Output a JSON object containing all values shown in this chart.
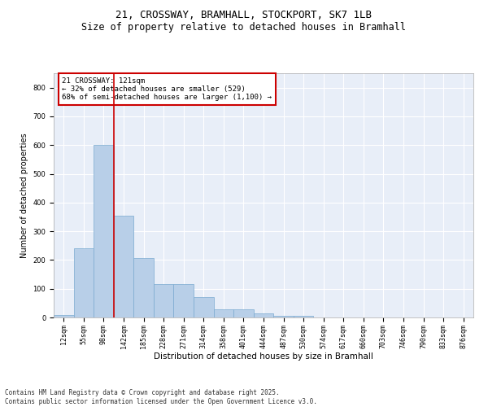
{
  "title": "21, CROSSWAY, BRAMHALL, STOCKPORT, SK7 1LB",
  "subtitle": "Size of property relative to detached houses in Bramhall",
  "xlabel": "Distribution of detached houses by size in Bramhall",
  "ylabel": "Number of detached properties",
  "bar_color": "#b8cfe8",
  "bar_edge_color": "#7aaad0",
  "background_color": "#e8eef8",
  "grid_color": "#ffffff",
  "categories": [
    "12sqm",
    "55sqm",
    "98sqm",
    "142sqm",
    "185sqm",
    "228sqm",
    "271sqm",
    "314sqm",
    "358sqm",
    "401sqm",
    "444sqm",
    "487sqm",
    "530sqm",
    "574sqm",
    "617sqm",
    "660sqm",
    "703sqm",
    "746sqm",
    "790sqm",
    "833sqm",
    "876sqm"
  ],
  "values": [
    8,
    240,
    600,
    355,
    207,
    117,
    117,
    70,
    28,
    28,
    14,
    7,
    7,
    0,
    0,
    0,
    0,
    0,
    0,
    0,
    0
  ],
  "ylim": [
    0,
    850
  ],
  "yticks": [
    0,
    100,
    200,
    300,
    400,
    500,
    600,
    700,
    800
  ],
  "vline_x": 2.5,
  "vline_color": "#cc0000",
  "annotation_text": "21 CROSSWAY: 121sqm\n← 32% of detached houses are smaller (529)\n68% of semi-detached houses are larger (1,100) →",
  "annotation_box_color": "#ffffff",
  "annotation_box_edge_color": "#cc0000",
  "footer_text": "Contains HM Land Registry data © Crown copyright and database right 2025.\nContains public sector information licensed under the Open Government Licence v3.0.",
  "title_fontsize": 9,
  "subtitle_fontsize": 8.5,
  "axis_label_fontsize": 7,
  "tick_fontsize": 6,
  "annotation_fontsize": 6.5,
  "footer_fontsize": 5.5
}
